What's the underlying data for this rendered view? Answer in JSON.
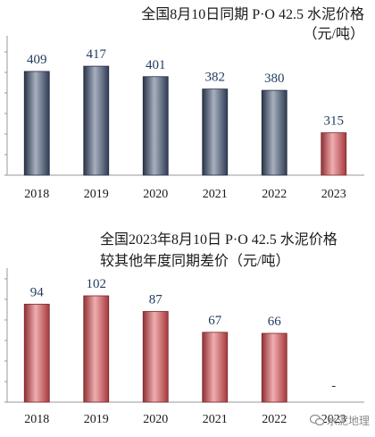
{
  "chart_data": [
    {
      "type": "bar",
      "title": "全国8月10日同期 P·O 42.5 水泥价格",
      "subtitle": "（元/吨）",
      "categories": [
        "2018",
        "2019",
        "2020",
        "2021",
        "2022",
        "2023"
      ],
      "values": [
        409,
        417,
        401,
        382,
        380,
        315
      ],
      "data_labels": [
        "409",
        "417",
        "401",
        "382",
        "380",
        "315"
      ],
      "ylim": [
        250,
        450
      ],
      "grid": false,
      "colors": {
        "default": "#3d5070",
        "highlight": "#dd4a50"
      },
      "highlight_index": 5
    },
    {
      "type": "bar",
      "title": "全国2023年8月10日 P·O 42.5 水泥价格",
      "subtitle": "较其他年度同期差价（元/吨）",
      "categories": [
        "2018",
        "2019",
        "2020",
        "2021",
        "2022",
        "2023"
      ],
      "values": [
        94,
        102,
        87,
        67,
        66,
        null
      ],
      "data_labels": [
        "94",
        "102",
        "87",
        "67",
        "66",
        "-"
      ],
      "ylim": [
        0,
        120
      ],
      "grid": false,
      "colors": {
        "default": "#dd4a50"
      }
    }
  ],
  "watermark": "水泥地理"
}
